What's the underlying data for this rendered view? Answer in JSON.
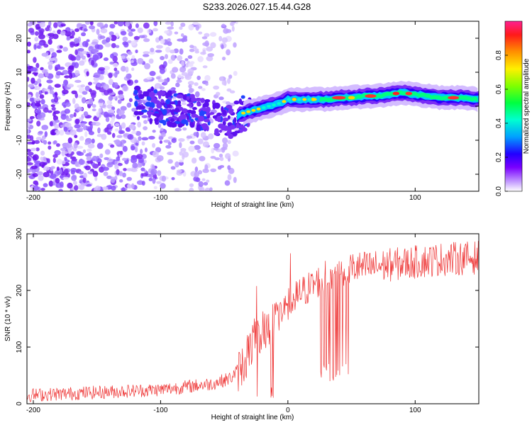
{
  "title": "S233.2026.027.15.44.G28",
  "chart_data": [
    {
      "type": "heatmap",
      "xlabel": "Height of straight line (km)",
      "ylabel": "Frequency (Hz)",
      "xlim": [
        -205,
        150
      ],
      "ylim": [
        -25,
        25
      ],
      "xticks": [
        -200,
        -100,
        0,
        100
      ],
      "yticks": [
        -20,
        -10,
        0,
        10,
        20
      ],
      "ridge": {
        "x": [
          -120,
          -100,
          -80,
          -60,
          -45,
          -35,
          -25,
          -15,
          -5,
          0,
          10,
          20,
          30,
          40,
          50,
          60,
          70,
          80,
          90,
          100,
          110,
          120,
          130,
          140,
          150
        ],
        "y": [
          1,
          0,
          -1,
          -3,
          -4,
          -2,
          -1,
          0,
          1,
          2,
          2,
          2,
          2,
          2.5,
          2.5,
          3,
          3,
          3.5,
          4,
          3.5,
          3,
          2.5,
          2.5,
          2.5,
          2
        ]
      },
      "colorbar": {
        "label": "Normalized spectral amplitude",
        "range": [
          0,
          1
        ],
        "ticks": [
          "0.0",
          "0.2",
          "0.4",
          "0.6",
          "0.8"
        ]
      }
    },
    {
      "type": "line",
      "xlabel": "Height of straight line (km)",
      "ylabel": "SNR (10 * v/v)",
      "xlim": [
        -205,
        150
      ],
      "ylim": [
        0,
        300
      ],
      "xticks": [
        -200,
        -100,
        0,
        100
      ],
      "yticks": [
        0,
        100,
        200,
        300
      ],
      "color": "#ee3333",
      "trend": {
        "x": [
          -205,
          -150,
          -100,
          -80,
          -60,
          -45,
          -35,
          -30,
          -20,
          -10,
          0,
          10,
          20,
          30,
          40,
          50,
          60,
          80,
          100,
          120,
          150
        ],
        "y": [
          15,
          20,
          25,
          30,
          35,
          45,
          70,
          100,
          130,
          150,
          175,
          195,
          210,
          225,
          235,
          240,
          240,
          245,
          250,
          255,
          258
        ]
      }
    }
  ],
  "colors": {
    "axis": "#000000",
    "snr_line": "#ee3333",
    "scatter": "#6a1fd6"
  }
}
